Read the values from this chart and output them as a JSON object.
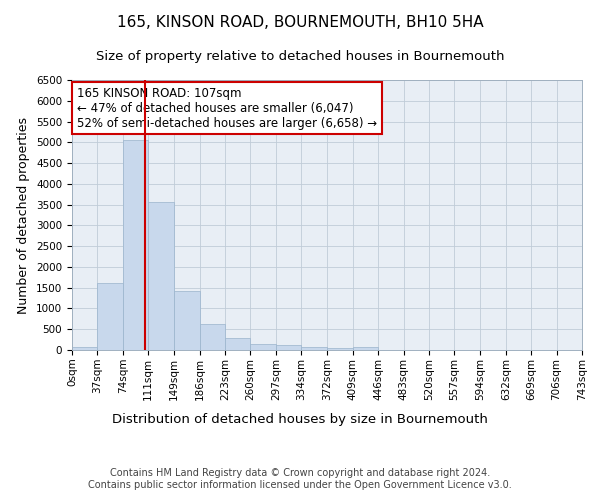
{
  "title": "165, KINSON ROAD, BOURNEMOUTH, BH10 5HA",
  "subtitle": "Size of property relative to detached houses in Bournemouth",
  "xlabel": "Distribution of detached houses by size in Bournemouth",
  "ylabel": "Number of detached properties",
  "footer_line1": "Contains HM Land Registry data © Crown copyright and database right 2024.",
  "footer_line2": "Contains public sector information licensed under the Open Government Licence v3.0.",
  "bin_edges": [
    0,
    37,
    74,
    111,
    149,
    186,
    223,
    260,
    297,
    334,
    372,
    409,
    446,
    483,
    520,
    557,
    594,
    632,
    669,
    706,
    743
  ],
  "bar_heights": [
    75,
    1625,
    5050,
    3575,
    1410,
    620,
    290,
    145,
    110,
    75,
    55,
    75,
    0,
    0,
    0,
    0,
    0,
    0,
    0,
    0
  ],
  "bar_color": "#c8d8ec",
  "bar_edge_color": "#9ab4cc",
  "property_line_x": 107,
  "property_line_color": "#cc0000",
  "annotation_text": "165 KINSON ROAD: 107sqm\n← 47% of detached houses are smaller (6,047)\n52% of semi-detached houses are larger (6,658) →",
  "annotation_box_color": "#ffffff",
  "annotation_box_edge_color": "#cc0000",
  "ylim": [
    0,
    6500
  ],
  "yticks": [
    0,
    500,
    1000,
    1500,
    2000,
    2500,
    3000,
    3500,
    4000,
    4500,
    5000,
    5500,
    6000,
    6500
  ],
  "background_color": "#ffffff",
  "plot_bg_color": "#e8eef5",
  "grid_color": "#c0ccd8",
  "title_fontsize": 11,
  "subtitle_fontsize": 9.5,
  "ylabel_fontsize": 9,
  "xlabel_fontsize": 9.5,
  "tick_fontsize": 7.5,
  "annotation_fontsize": 8.5,
  "footer_fontsize": 7
}
